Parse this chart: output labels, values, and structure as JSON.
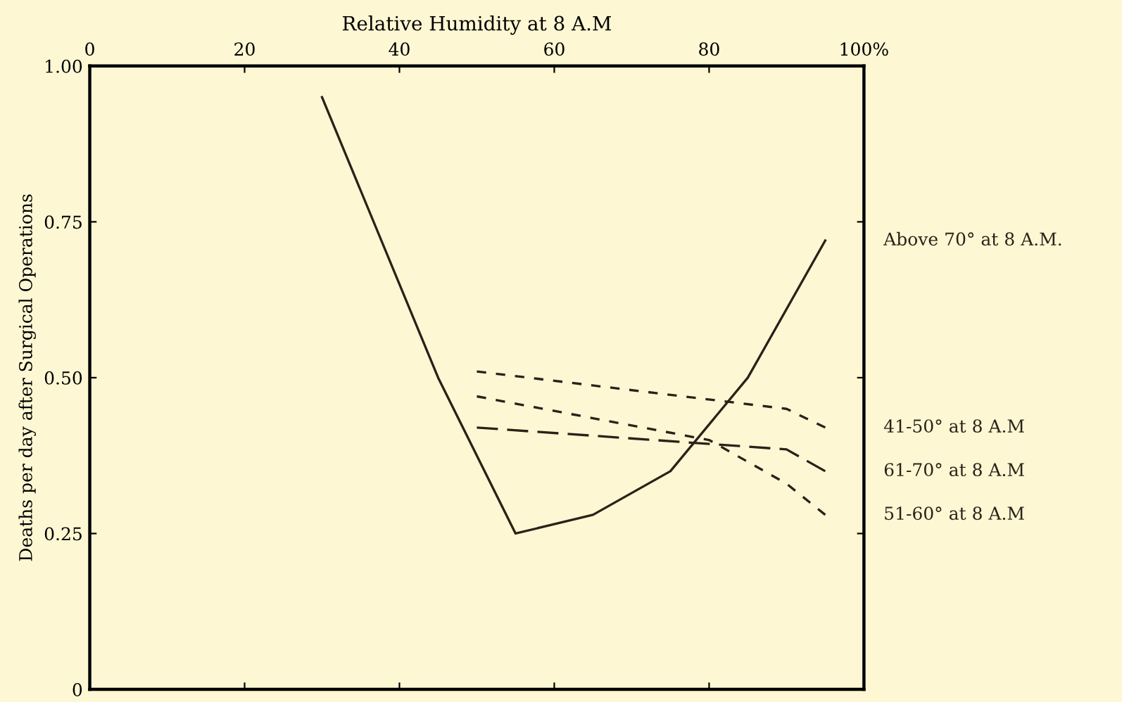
{
  "chart_data": {
    "type": "line",
    "xlabel": "Relative Humidity at 8 A.M",
    "ylabel": "Deaths per day after Surgical Operations",
    "xlim": [
      0,
      100
    ],
    "xticks": [
      0,
      20,
      40,
      60,
      80,
      {
        "value": 100,
        "label": "100%"
      }
    ],
    "ylim": [
      0,
      1
    ],
    "yticks": [
      0,
      {
        "value": 0.25,
        "label": "0.25"
      },
      {
        "value": 0.5,
        "label": "0.50"
      },
      {
        "value": 0.75,
        "label": "0.75"
      },
      {
        "value": 1,
        "label": "1.00"
      }
    ],
    "grid": false,
    "legend": false,
    "marker": "none",
    "series": [
      {
        "name": "Above 70° at 8 A.M.",
        "color": "#2b2118",
        "line_style": "solid",
        "x": [
          30,
          45,
          55,
          65,
          75,
          85,
          95
        ],
        "values": [
          0.95,
          0.5,
          0.25,
          0.28,
          0.35,
          0.5,
          0.72
        ]
      },
      {
        "name": "41-50° at 8 A.M",
        "color": "#2b2118",
        "line_style": "dotted",
        "x": [
          50,
          90,
          95
        ],
        "values": [
          0.51,
          0.45,
          0.42
        ]
      },
      {
        "name": "61-70° at 8 A.M",
        "color": "#2b2118",
        "line_style": "dashed",
        "x": [
          50,
          90,
          95
        ],
        "values": [
          0.42,
          0.385,
          0.35
        ]
      },
      {
        "name": "51-60° at 8 A.M",
        "color": "#2b2118",
        "line_style": "dotted",
        "x": [
          50,
          80,
          90,
          95
        ],
        "values": [
          0.47,
          0.4,
          0.33,
          0.28
        ]
      }
    ]
  }
}
